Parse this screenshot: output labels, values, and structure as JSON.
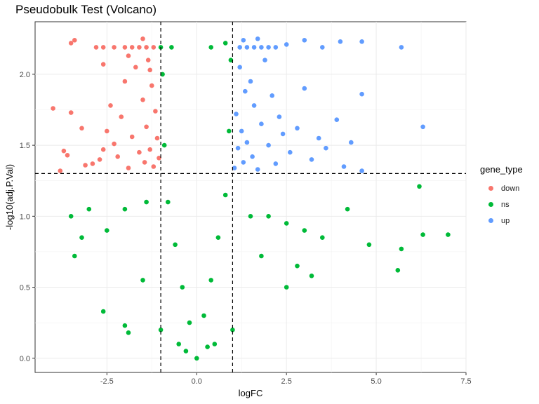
{
  "chart_data": {
    "type": "scatter",
    "title": "Pseudobulk Test (Volcano)",
    "xlabel": "logFC",
    "ylabel": "-log10(adj.P.Val)",
    "xlim": [
      -4.5,
      7.5
    ],
    "ylim": [
      -0.1,
      2.37
    ],
    "x_ticks": [
      -2.5,
      0.0,
      2.5,
      5.0,
      7.5
    ],
    "x_tick_labels": [
      "-2.5",
      "0.0",
      "2.5",
      "5.0",
      "7.5"
    ],
    "y_ticks": [
      0.0,
      0.5,
      1.0,
      1.5,
      2.0
    ],
    "y_tick_labels": [
      "0.0",
      "0.5",
      "1.0",
      "1.5",
      "2.0"
    ],
    "thresholds": {
      "logFC": [
        -1,
        1
      ],
      "neg_log10_p": 1.301
    },
    "grid": true,
    "legend_position": "right",
    "legend": {
      "title": "gene_type",
      "items": [
        {
          "label": "down",
          "color": "#F8766D"
        },
        {
          "label": "ns",
          "color": "#00BA38"
        },
        {
          "label": "up",
          "color": "#619CFF"
        }
      ]
    },
    "series": [
      {
        "name": "down",
        "color": "#F8766D",
        "points": [
          [
            -4.0,
            1.76
          ],
          [
            -3.7,
            1.46
          ],
          [
            -3.8,
            1.32
          ],
          [
            -3.6,
            1.43
          ],
          [
            -3.5,
            1.73
          ],
          [
            -3.2,
            1.62
          ],
          [
            -3.1,
            1.36
          ],
          [
            -2.9,
            1.37
          ],
          [
            -2.7,
            1.4
          ],
          [
            -2.6,
            1.47
          ],
          [
            -2.5,
            1.6
          ],
          [
            -2.4,
            1.78
          ],
          [
            -2.3,
            1.51
          ],
          [
            -2.2,
            1.42
          ],
          [
            -2.1,
            1.7
          ],
          [
            -2.0,
            1.95
          ],
          [
            -1.9,
            1.34
          ],
          [
            -1.8,
            1.56
          ],
          [
            -1.7,
            2.05
          ],
          [
            -1.6,
            1.45
          ],
          [
            -1.5,
            1.82
          ],
          [
            -1.45,
            1.38
          ],
          [
            -1.4,
            1.63
          ],
          [
            -1.35,
            2.1
          ],
          [
            -1.3,
            1.47
          ],
          [
            -1.25,
            1.92
          ],
          [
            -1.2,
            1.35
          ],
          [
            -1.15,
            1.74
          ],
          [
            -1.1,
            1.55
          ],
          [
            -1.05,
            1.41
          ],
          [
            -2.6,
            2.19
          ],
          [
            -2.3,
            2.19
          ],
          [
            -2.0,
            2.19
          ],
          [
            -1.8,
            2.19
          ],
          [
            -1.6,
            2.19
          ],
          [
            -1.4,
            2.19
          ],
          [
            -1.2,
            2.19
          ],
          [
            -3.5,
            2.22
          ],
          [
            -3.4,
            2.24
          ],
          [
            -2.8,
            2.19
          ],
          [
            -2.6,
            2.07
          ],
          [
            -1.9,
            2.13
          ],
          [
            -1.5,
            2.25
          ],
          [
            -1.3,
            2.03
          ]
        ]
      },
      {
        "name": "up",
        "color": "#619CFF",
        "points": [
          [
            1.05,
            1.34
          ],
          [
            1.1,
            1.72
          ],
          [
            1.15,
            1.48
          ],
          [
            1.2,
            2.05
          ],
          [
            1.25,
            1.6
          ],
          [
            1.3,
            1.38
          ],
          [
            1.35,
            1.88
          ],
          [
            1.4,
            1.52
          ],
          [
            1.5,
            1.95
          ],
          [
            1.55,
            1.42
          ],
          [
            1.6,
            1.78
          ],
          [
            1.7,
            1.33
          ],
          [
            1.8,
            1.65
          ],
          [
            1.9,
            2.1
          ],
          [
            2.0,
            1.5
          ],
          [
            2.1,
            1.85
          ],
          [
            2.2,
            1.37
          ],
          [
            2.3,
            1.7
          ],
          [
            2.4,
            1.58
          ],
          [
            2.6,
            1.45
          ],
          [
            2.8,
            1.62
          ],
          [
            3.0,
            1.9
          ],
          [
            3.2,
            1.4
          ],
          [
            3.4,
            1.55
          ],
          [
            3.6,
            1.48
          ],
          [
            3.9,
            1.68
          ],
          [
            4.1,
            1.35
          ],
          [
            4.3,
            1.52
          ],
          [
            1.2,
            2.19
          ],
          [
            1.4,
            2.19
          ],
          [
            1.6,
            2.19
          ],
          [
            1.8,
            2.19
          ],
          [
            2.0,
            2.19
          ],
          [
            2.2,
            2.19
          ],
          [
            1.3,
            2.24
          ],
          [
            1.7,
            2.25
          ],
          [
            2.5,
            2.21
          ],
          [
            3.0,
            2.24
          ],
          [
            3.5,
            2.19
          ],
          [
            4.0,
            2.23
          ],
          [
            4.6,
            2.23
          ],
          [
            4.6,
            1.86
          ],
          [
            5.7,
            2.19
          ],
          [
            6.3,
            1.63
          ],
          [
            4.6,
            1.32
          ]
        ]
      },
      {
        "name": "ns",
        "color": "#00BA38",
        "points": [
          [
            0.0,
            0.0
          ],
          [
            -0.2,
            0.25
          ],
          [
            0.2,
            0.3
          ],
          [
            -0.4,
            0.5
          ],
          [
            0.4,
            0.55
          ],
          [
            -0.6,
            0.8
          ],
          [
            0.6,
            0.85
          ],
          [
            -0.8,
            1.1
          ],
          [
            0.8,
            1.15
          ],
          [
            -0.9,
            1.5
          ],
          [
            0.9,
            1.6
          ],
          [
            -0.95,
            2.0
          ],
          [
            0.95,
            2.1
          ],
          [
            -1.4,
            1.1
          ],
          [
            1.5,
            1.0
          ],
          [
            -2.0,
            1.05
          ],
          [
            2.0,
            1.0
          ],
          [
            -2.5,
            0.9
          ],
          [
            2.5,
            0.95
          ],
          [
            -3.0,
            1.05
          ],
          [
            3.0,
            0.9
          ],
          [
            -3.5,
            1.0
          ],
          [
            3.5,
            0.85
          ],
          [
            4.2,
            1.05
          ],
          [
            4.8,
            0.8
          ],
          [
            5.6,
            0.62
          ],
          [
            5.7,
            0.77
          ],
          [
            6.2,
            1.21
          ],
          [
            6.3,
            0.87
          ],
          [
            7.0,
            0.87
          ],
          [
            -2.6,
            0.33
          ],
          [
            -2.0,
            0.23
          ],
          [
            -1.9,
            0.18
          ],
          [
            -1.0,
            0.2
          ],
          [
            1.0,
            0.2
          ],
          [
            2.5,
            0.5
          ],
          [
            3.2,
            0.58
          ],
          [
            -3.4,
            0.72
          ],
          [
            -0.5,
            0.1
          ],
          [
            0.5,
            0.1
          ],
          [
            -0.7,
            2.19
          ],
          [
            -1.0,
            2.19
          ],
          [
            0.8,
            2.22
          ],
          [
            0.4,
            2.19
          ],
          [
            -1.5,
            0.55
          ],
          [
            1.8,
            0.72
          ],
          [
            -3.2,
            0.85
          ],
          [
            2.8,
            0.65
          ],
          [
            0.3,
            0.08
          ],
          [
            -0.3,
            0.05
          ]
        ]
      }
    ]
  }
}
